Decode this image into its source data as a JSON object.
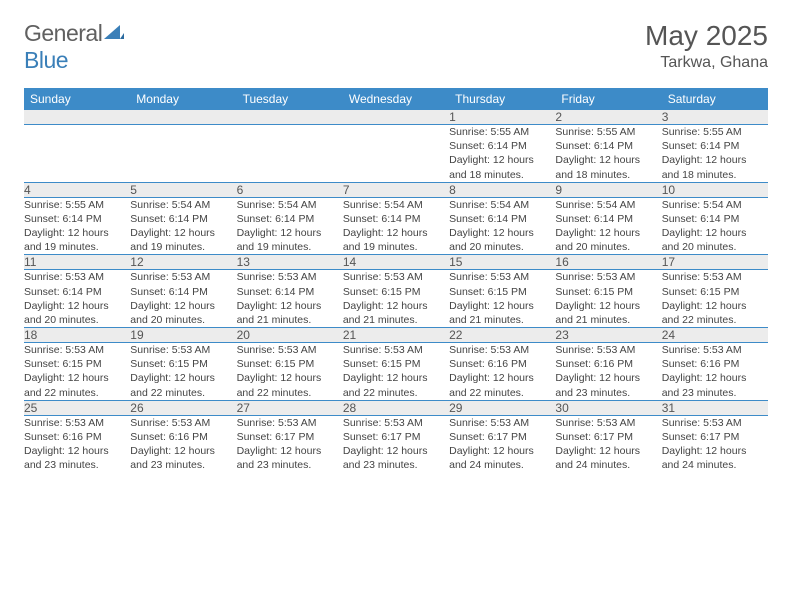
{
  "logo": {
    "gray": "General",
    "blue": "Blue"
  },
  "title": "May 2025",
  "location": "Tarkwa, Ghana",
  "header_bg": "#3d8bc8",
  "daynum_bg": "#ececec",
  "text_color": "#444444",
  "weekdays": [
    "Sunday",
    "Monday",
    "Tuesday",
    "Wednesday",
    "Thursday",
    "Friday",
    "Saturday"
  ],
  "weeks": [
    {
      "nums": [
        "",
        "",
        "",
        "",
        "1",
        "2",
        "3"
      ],
      "sunrise": [
        "",
        "",
        "",
        "",
        "Sunrise: 5:55 AM",
        "Sunrise: 5:55 AM",
        "Sunrise: 5:55 AM"
      ],
      "sunset": [
        "",
        "",
        "",
        "",
        "Sunset: 6:14 PM",
        "Sunset: 6:14 PM",
        "Sunset: 6:14 PM"
      ],
      "day1": [
        "",
        "",
        "",
        "",
        "Daylight: 12 hours",
        "Daylight: 12 hours",
        "Daylight: 12 hours"
      ],
      "day2": [
        "",
        "",
        "",
        "",
        "and 18 minutes.",
        "and 18 minutes.",
        "and 18 minutes."
      ]
    },
    {
      "nums": [
        "4",
        "5",
        "6",
        "7",
        "8",
        "9",
        "10"
      ],
      "sunrise": [
        "Sunrise: 5:55 AM",
        "Sunrise: 5:54 AM",
        "Sunrise: 5:54 AM",
        "Sunrise: 5:54 AM",
        "Sunrise: 5:54 AM",
        "Sunrise: 5:54 AM",
        "Sunrise: 5:54 AM"
      ],
      "sunset": [
        "Sunset: 6:14 PM",
        "Sunset: 6:14 PM",
        "Sunset: 6:14 PM",
        "Sunset: 6:14 PM",
        "Sunset: 6:14 PM",
        "Sunset: 6:14 PM",
        "Sunset: 6:14 PM"
      ],
      "day1": [
        "Daylight: 12 hours",
        "Daylight: 12 hours",
        "Daylight: 12 hours",
        "Daylight: 12 hours",
        "Daylight: 12 hours",
        "Daylight: 12 hours",
        "Daylight: 12 hours"
      ],
      "day2": [
        "and 19 minutes.",
        "and 19 minutes.",
        "and 19 minutes.",
        "and 19 minutes.",
        "and 20 minutes.",
        "and 20 minutes.",
        "and 20 minutes."
      ]
    },
    {
      "nums": [
        "11",
        "12",
        "13",
        "14",
        "15",
        "16",
        "17"
      ],
      "sunrise": [
        "Sunrise: 5:53 AM",
        "Sunrise: 5:53 AM",
        "Sunrise: 5:53 AM",
        "Sunrise: 5:53 AM",
        "Sunrise: 5:53 AM",
        "Sunrise: 5:53 AM",
        "Sunrise: 5:53 AM"
      ],
      "sunset": [
        "Sunset: 6:14 PM",
        "Sunset: 6:14 PM",
        "Sunset: 6:14 PM",
        "Sunset: 6:15 PM",
        "Sunset: 6:15 PM",
        "Sunset: 6:15 PM",
        "Sunset: 6:15 PM"
      ],
      "day1": [
        "Daylight: 12 hours",
        "Daylight: 12 hours",
        "Daylight: 12 hours",
        "Daylight: 12 hours",
        "Daylight: 12 hours",
        "Daylight: 12 hours",
        "Daylight: 12 hours"
      ],
      "day2": [
        "and 20 minutes.",
        "and 20 minutes.",
        "and 21 minutes.",
        "and 21 minutes.",
        "and 21 minutes.",
        "and 21 minutes.",
        "and 22 minutes."
      ]
    },
    {
      "nums": [
        "18",
        "19",
        "20",
        "21",
        "22",
        "23",
        "24"
      ],
      "sunrise": [
        "Sunrise: 5:53 AM",
        "Sunrise: 5:53 AM",
        "Sunrise: 5:53 AM",
        "Sunrise: 5:53 AM",
        "Sunrise: 5:53 AM",
        "Sunrise: 5:53 AM",
        "Sunrise: 5:53 AM"
      ],
      "sunset": [
        "Sunset: 6:15 PM",
        "Sunset: 6:15 PM",
        "Sunset: 6:15 PM",
        "Sunset: 6:15 PM",
        "Sunset: 6:16 PM",
        "Sunset: 6:16 PM",
        "Sunset: 6:16 PM"
      ],
      "day1": [
        "Daylight: 12 hours",
        "Daylight: 12 hours",
        "Daylight: 12 hours",
        "Daylight: 12 hours",
        "Daylight: 12 hours",
        "Daylight: 12 hours",
        "Daylight: 12 hours"
      ],
      "day2": [
        "and 22 minutes.",
        "and 22 minutes.",
        "and 22 minutes.",
        "and 22 minutes.",
        "and 22 minutes.",
        "and 23 minutes.",
        "and 23 minutes."
      ]
    },
    {
      "nums": [
        "25",
        "26",
        "27",
        "28",
        "29",
        "30",
        "31"
      ],
      "sunrise": [
        "Sunrise: 5:53 AM",
        "Sunrise: 5:53 AM",
        "Sunrise: 5:53 AM",
        "Sunrise: 5:53 AM",
        "Sunrise: 5:53 AM",
        "Sunrise: 5:53 AM",
        "Sunrise: 5:53 AM"
      ],
      "sunset": [
        "Sunset: 6:16 PM",
        "Sunset: 6:16 PM",
        "Sunset: 6:17 PM",
        "Sunset: 6:17 PM",
        "Sunset: 6:17 PM",
        "Sunset: 6:17 PM",
        "Sunset: 6:17 PM"
      ],
      "day1": [
        "Daylight: 12 hours",
        "Daylight: 12 hours",
        "Daylight: 12 hours",
        "Daylight: 12 hours",
        "Daylight: 12 hours",
        "Daylight: 12 hours",
        "Daylight: 12 hours"
      ],
      "day2": [
        "and 23 minutes.",
        "and 23 minutes.",
        "and 23 minutes.",
        "and 23 minutes.",
        "and 24 minutes.",
        "and 24 minutes.",
        "and 24 minutes."
      ]
    }
  ]
}
